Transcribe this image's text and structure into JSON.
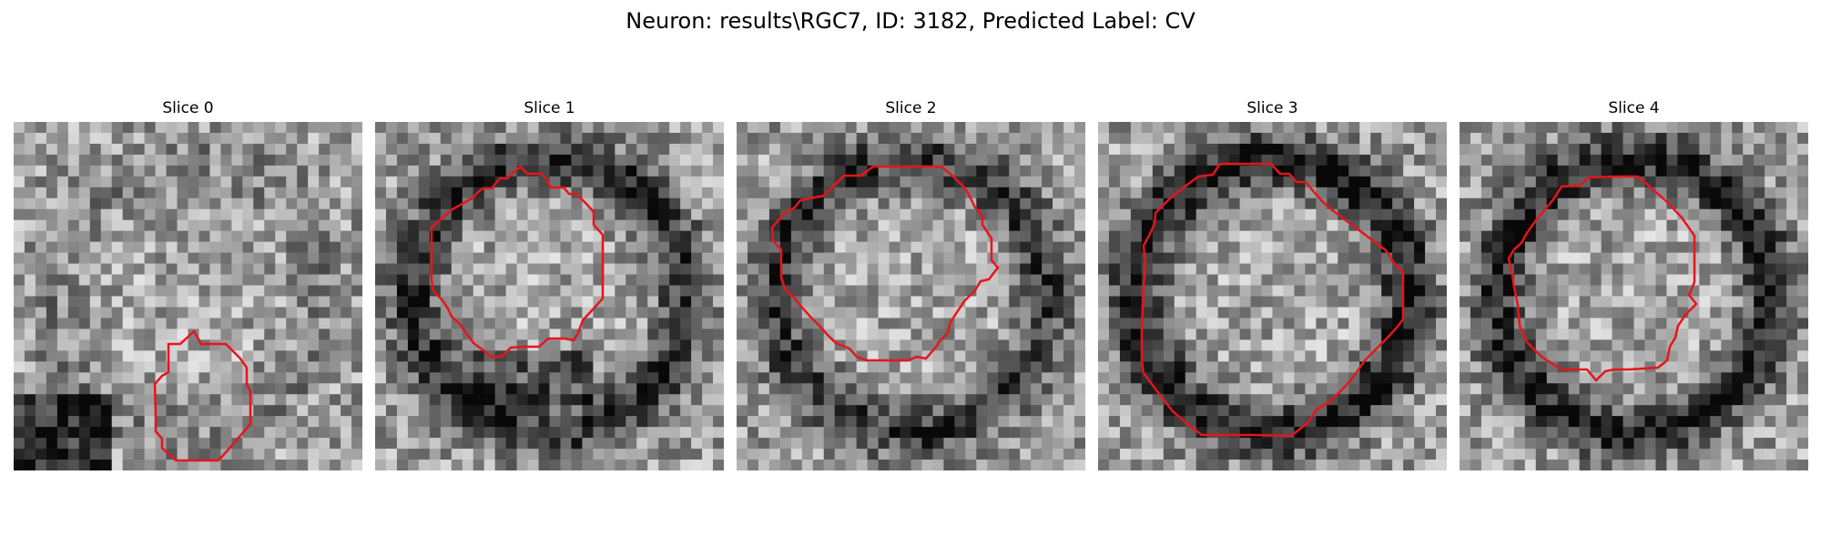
{
  "figure": {
    "title": "Neuron: results\\RGC7, ID: 3182, Predicted Label: CV"
  },
  "slices": [
    {
      "title": "Slice 0",
      "seed": 11,
      "dark_ring": 0.1,
      "dark_patch": "bottom-left"
    },
    {
      "title": "Slice 1",
      "seed": 23,
      "dark_ring": 0.45,
      "dark_patch": "bottom"
    },
    {
      "title": "Slice 2",
      "seed": 37,
      "dark_ring": 0.4,
      "dark_patch": "none"
    },
    {
      "title": "Slice 3",
      "seed": 41,
      "dark_ring": 0.55,
      "dark_patch": "none"
    },
    {
      "title": "Slice 4",
      "seed": 53,
      "dark_ring": 0.5,
      "dark_patch": "none"
    }
  ],
  "contour_color": "#e8141b",
  "colormap": "gray"
}
